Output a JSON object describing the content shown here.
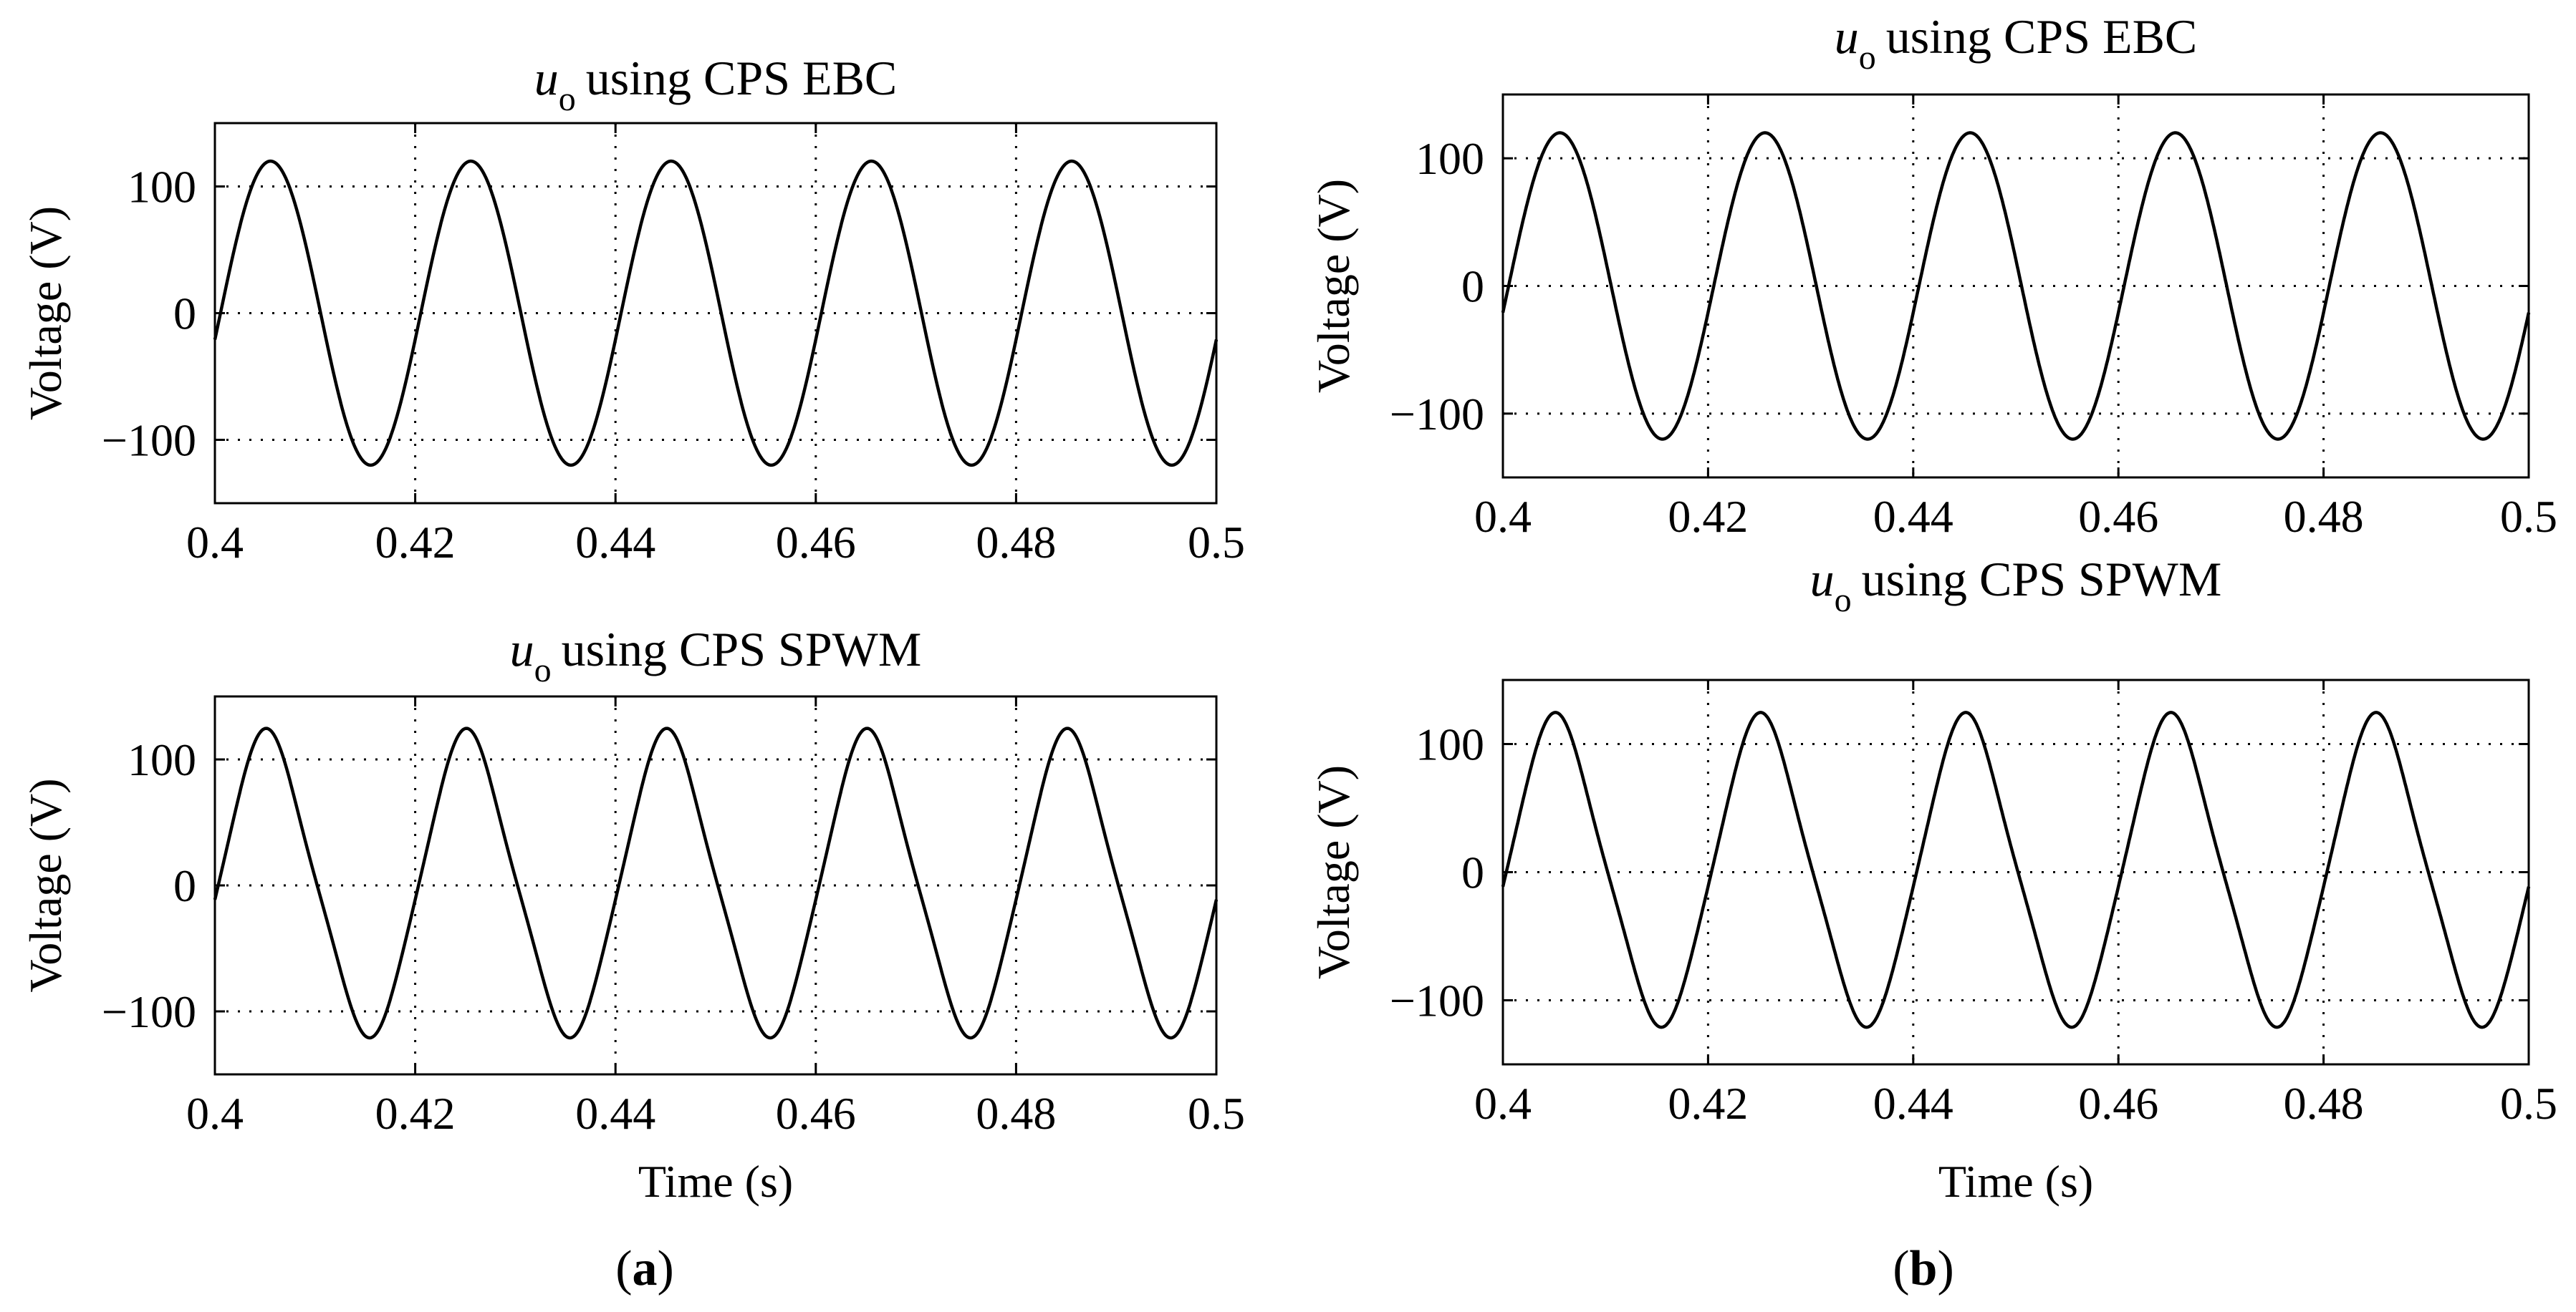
{
  "chart_data": [
    {
      "id": "a-top",
      "type": "line",
      "title_symbol": "u",
      "title_subscript": "o",
      "title": "using CPS EBC",
      "xlabel": "",
      "ylabel": "Voltage (V)",
      "xlim": [
        0.4,
        0.5
      ],
      "ylim": [
        -150,
        150
      ],
      "xticks": [
        0.4,
        0.42,
        0.44,
        0.46,
        0.48,
        0.5
      ],
      "xtick_labels": [
        "0.4",
        "0.42",
        "0.44",
        "0.46",
        "0.48",
        "0.5"
      ],
      "yticks": [
        100,
        0,
        -100
      ],
      "ytick_labels": [
        "100",
        "0",
        "−100"
      ],
      "grid": true,
      "series": [
        {
          "name": "u_o",
          "waveform": "sine",
          "amplitude": 120,
          "frequency_hz": 50,
          "phase_deg": -10,
          "distortion": 0
        }
      ]
    },
    {
      "id": "a-bottom",
      "type": "line",
      "title_symbol": "u",
      "title_subscript": "o",
      "title": "using CPS SPWM",
      "xlabel": "Time (s)",
      "ylabel": "Voltage (V)",
      "xlim": [
        0.4,
        0.5
      ],
      "ylim": [
        -150,
        150
      ],
      "xticks": [
        0.4,
        0.42,
        0.44,
        0.46,
        0.48,
        0.5
      ],
      "xtick_labels": [
        "0.4",
        "0.42",
        "0.44",
        "0.46",
        "0.48",
        "0.5"
      ],
      "yticks": [
        100,
        0,
        -100
      ],
      "ytick_labels": [
        "100",
        "0",
        "−100"
      ],
      "grid": true,
      "series": [
        {
          "name": "u_o",
          "waveform": "distorted-sine",
          "amplitude": 117,
          "frequency_hz": 50,
          "phase_deg": -5,
          "distortion": 0.08
        }
      ]
    },
    {
      "id": "b-top",
      "type": "line",
      "title_symbol": "u",
      "title_subscript": "o",
      "title": "using CPS EBC",
      "xlabel": "",
      "ylabel": "Voltage (V)",
      "xlim": [
        0.4,
        0.5
      ],
      "ylim": [
        -150,
        150
      ],
      "xticks": [
        0.4,
        0.42,
        0.44,
        0.46,
        0.48,
        0.5
      ],
      "xtick_labels": [
        "0.4",
        "0.42",
        "0.44",
        "0.46",
        "0.48",
        "0.5"
      ],
      "yticks": [
        100,
        0,
        -100
      ],
      "ytick_labels": [
        "100",
        "0",
        "−100"
      ],
      "grid": true,
      "series": [
        {
          "name": "u_o",
          "waveform": "sine",
          "amplitude": 120,
          "frequency_hz": 50,
          "phase_deg": -10,
          "distortion": 0
        }
      ]
    },
    {
      "id": "b-bottom",
      "type": "line",
      "title_symbol": "u",
      "title_subscript": "o",
      "title": "using CPS SPWM",
      "xlabel": "Time (s)",
      "ylabel": "Voltage (V)",
      "xlim": [
        0.4,
        0.5
      ],
      "ylim": [
        -150,
        150
      ],
      "xticks": [
        0.4,
        0.42,
        0.44,
        0.46,
        0.48,
        0.5
      ],
      "xtick_labels": [
        "0.4",
        "0.42",
        "0.44",
        "0.46",
        "0.48",
        "0.5"
      ],
      "yticks": [
        100,
        0,
        -100
      ],
      "ytick_labels": [
        "100",
        "0",
        "−100"
      ],
      "grid": true,
      "series": [
        {
          "name": "u_o",
          "waveform": "distorted-sine",
          "amplitude": 117,
          "frequency_hz": 50,
          "phase_deg": -5,
          "distortion": 0.08
        }
      ]
    }
  ],
  "panel_labels": {
    "a": "a",
    "b": "b"
  }
}
